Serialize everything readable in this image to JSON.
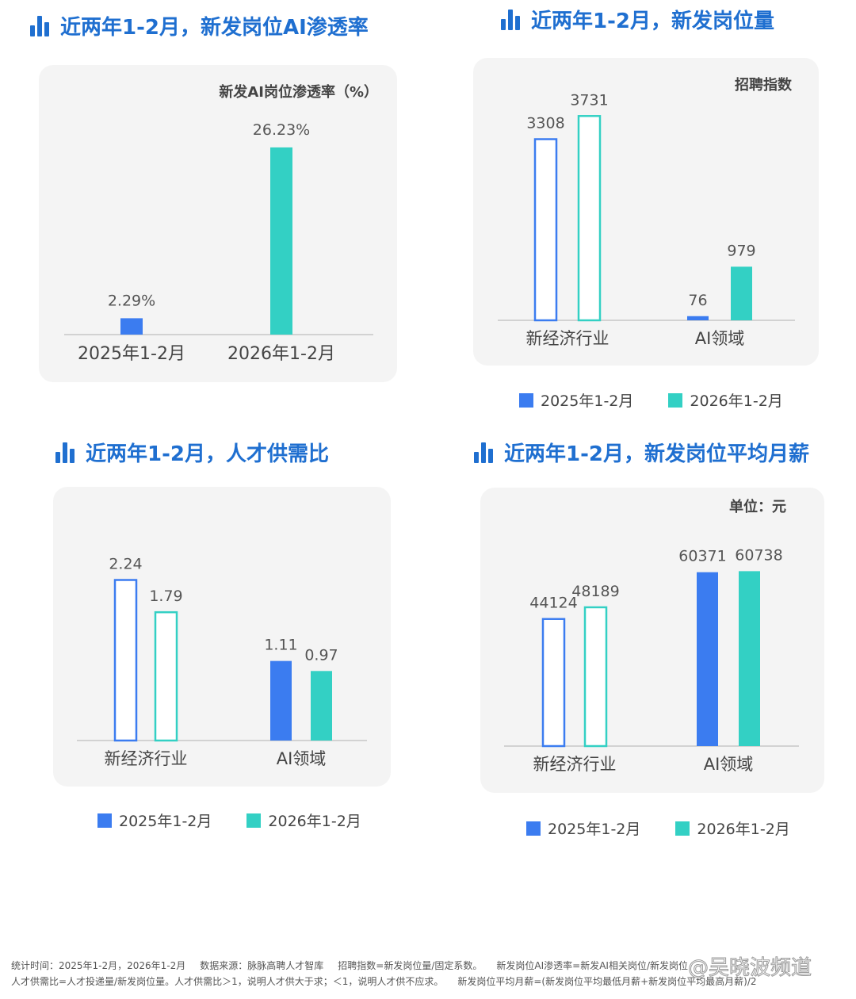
{
  "colors": {
    "title": "#1f6fd0",
    "y2025": "#3b7cf0",
    "y2026": "#33d0c4",
    "axis": "#d2d2d2",
    "card": "#f4f4f4"
  },
  "legend": {
    "y2025": "2025年1-2月",
    "y2026": "2026年1-2月"
  },
  "charts": {
    "penetration": {
      "title": "近两年1-2月，新发岗位AI渗透率",
      "unit": "新发AI岗位渗透率（%）",
      "chart_data": {
        "type": "bar",
        "categories": [
          "2025年1-2月",
          "2026年1-2月"
        ],
        "values": [
          2.29,
          26.23
        ],
        "value_labels": [
          "2.29%",
          "26.23%"
        ],
        "ylim": [
          0,
          30
        ]
      }
    },
    "volume": {
      "title": "近两年1-2月，新发岗位量",
      "unit": "招聘指数",
      "chart_data": {
        "type": "bar",
        "categories": [
          "新经济行业",
          "AI领域"
        ],
        "series": [
          {
            "name": "2025年1-2月",
            "values": [
              3308,
              76
            ]
          },
          {
            "name": "2026年1-2月",
            "values": [
              3731,
              979
            ]
          }
        ],
        "ylim": [
          0,
          4300
        ]
      }
    },
    "supply": {
      "title": "近两年1-2月，人才供需比",
      "unit": "",
      "chart_data": {
        "type": "bar",
        "categories": [
          "新经济行业",
          "AI领域"
        ],
        "series": [
          {
            "name": "2025年1-2月",
            "values": [
              2.24,
              1.11
            ]
          },
          {
            "name": "2026年1-2月",
            "values": [
              1.79,
              0.97
            ]
          }
        ],
        "ylim": [
          0,
          2.5
        ]
      }
    },
    "salary": {
      "title": "近两年1-2月，新发岗位平均月薪",
      "unit": "单位：元",
      "chart_data": {
        "type": "bar",
        "categories": [
          "新经济行业",
          "AI领域"
        ],
        "series": [
          {
            "name": "2025年1-2月",
            "values": [
              44124,
              60371
            ]
          },
          {
            "name": "2026年1-2月",
            "values": [
              48189,
              60738
            ]
          }
        ],
        "ylim": [
          0,
          68000
        ]
      }
    }
  },
  "footer": {
    "line1": [
      "统计时间：2025年1-2月，2026年1-2月",
      "数据来源：脉脉高聘人才智库",
      "招聘指数=新发岗位量/固定系数。",
      "新发岗位AI渗透率=新发AI相关岗位/新发岗位"
    ],
    "line2": [
      "人才供需比=人才投递量/新发岗位量。人才供需比＞1，说明人才供大于求；＜1，说明人才供不应求。",
      "新发岗位平均月薪=(新发岗位平均最低月薪+新发岗位平均最高月薪)/2"
    ]
  },
  "watermark": "@吴晓波频道"
}
